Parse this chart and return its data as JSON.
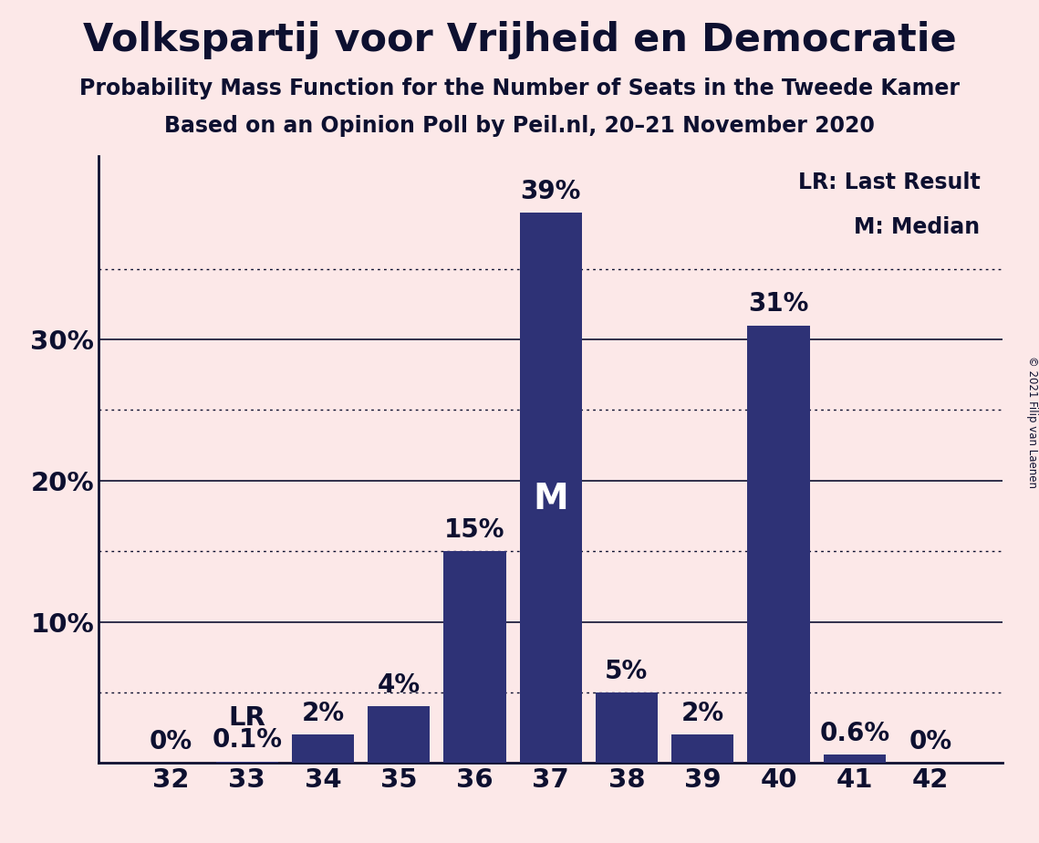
{
  "title": "Volkspartij voor Vrijheid en Democratie",
  "subtitle1": "Probability Mass Function for the Number of Seats in the Tweede Kamer",
  "subtitle2": "Based on an Opinion Poll by Peil.nl, 20–21 November 2020",
  "copyright": "© 2021 Filip van Laenen",
  "categories": [
    32,
    33,
    34,
    35,
    36,
    37,
    38,
    39,
    40,
    41,
    42
  ],
  "values": [
    0.0,
    0.1,
    2.0,
    4.0,
    15.0,
    39.0,
    5.0,
    2.0,
    31.0,
    0.6,
    0.0
  ],
  "bar_color": "#2e3276",
  "background_color": "#fce8e8",
  "text_color": "#0d1030",
  "label_values": [
    "0%",
    "0.1%",
    "2%",
    "4%",
    "15%",
    "39%",
    "5%",
    "2%",
    "31%",
    "0.6%",
    "0%"
  ],
  "lr_bar_idx": 1,
  "median_bar_idx": 5,
  "yticks": [
    0,
    10,
    20,
    30
  ],
  "ytick_labels": [
    "",
    "10%",
    "20%",
    "30%"
  ],
  "grid_solid_values": [
    10,
    20,
    30
  ],
  "grid_dotted_values": [
    5,
    15,
    25,
    35
  ],
  "legend_lr": "LR: Last Result",
  "legend_m": "M: Median",
  "ylim": [
    0,
    43
  ],
  "bar_width": 0.82
}
